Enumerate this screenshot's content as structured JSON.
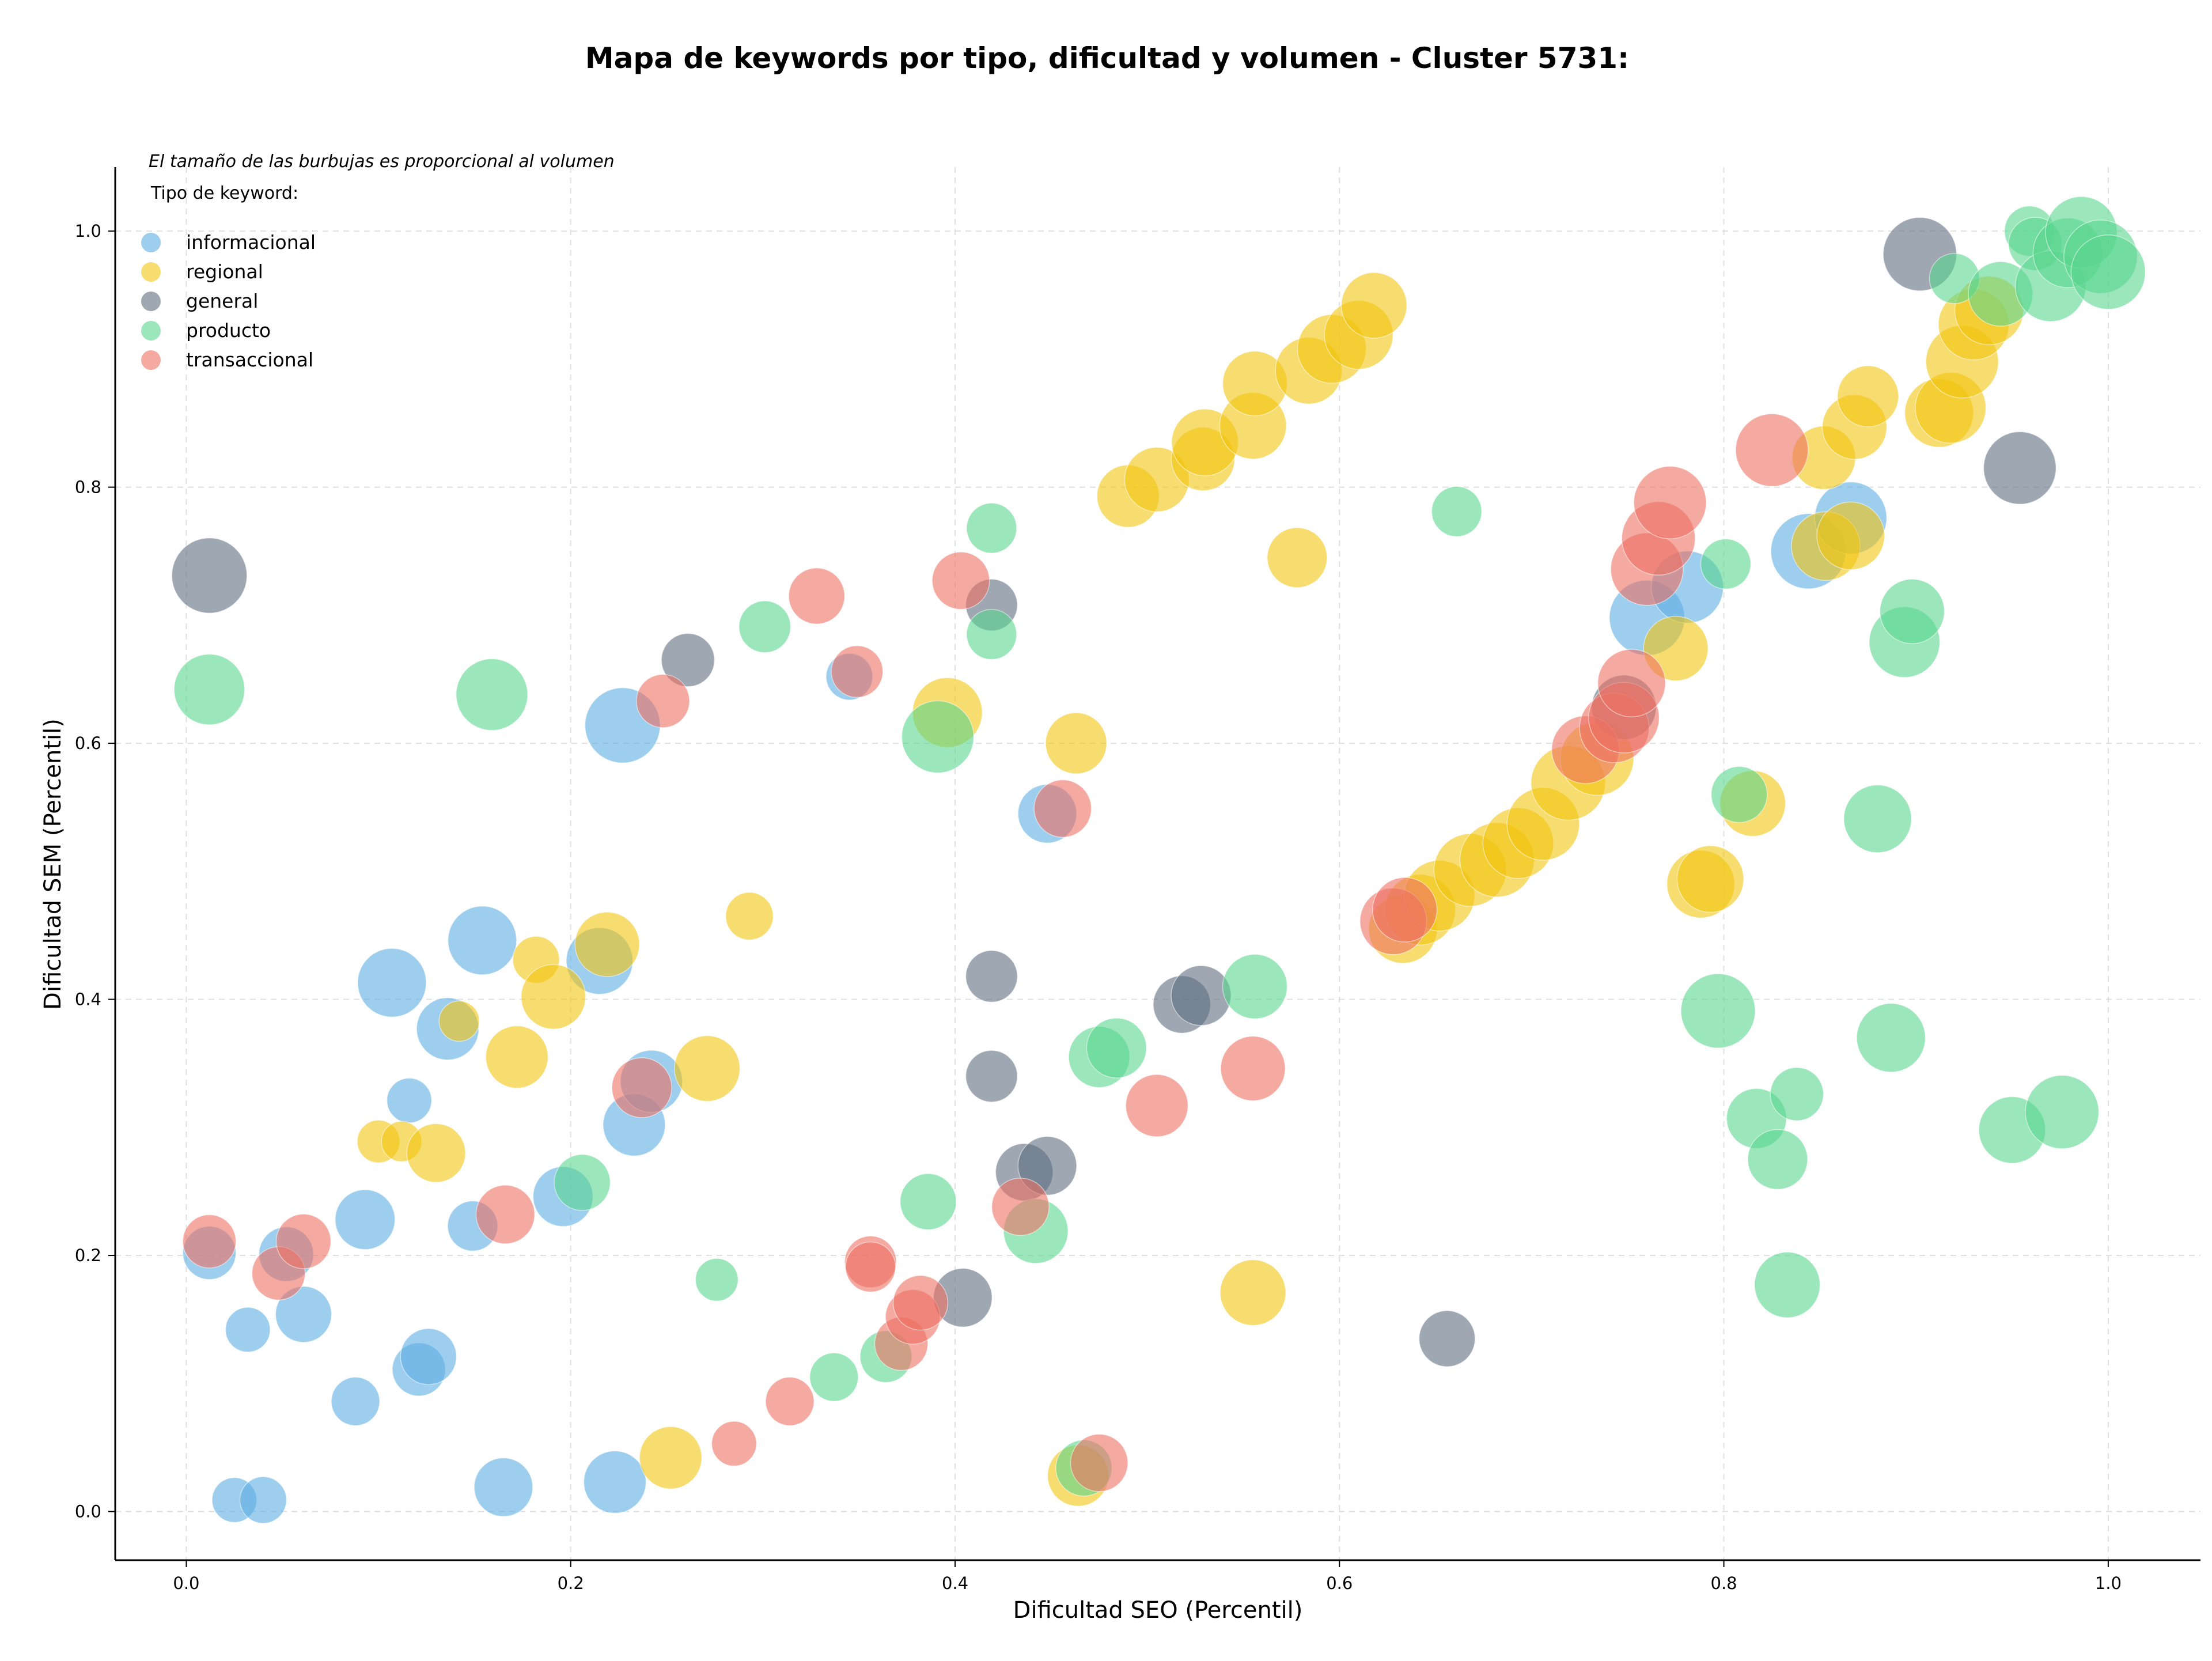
{
  "chart_data": {
    "type": "scatter",
    "title": "Mapa de keywords por tipo, dificultad y volumen - Cluster 5731:",
    "xlabel": "Dificultad SEO (Percentil)",
    "ylabel": "Dificultad SEM (Percentil)",
    "xlim": [
      -0.037,
      1.048
    ],
    "ylim": [
      -0.038,
      1.05
    ],
    "xticks": [
      "0.0",
      "0.2",
      "0.4",
      "0.6",
      "0.8",
      "1.0"
    ],
    "yticks": [
      "0.0",
      "0.2",
      "0.4",
      "0.6",
      "0.8",
      "1.0"
    ],
    "grid": true,
    "legend_placement": "top-left",
    "size_note": "El tamaño de las burbujas es proporcional al volumen",
    "legend_title": "Tipo de keyword:",
    "bubble_size": "relative volume (0-1), shown by bubble area",
    "series": [
      {
        "name": "informacional",
        "color": "#5dade2",
        "points": [
          [
            0.012,
            0.202,
            0.22
          ],
          [
            0.025,
            0.009,
            0.12
          ],
          [
            0.032,
            0.142,
            0.12
          ],
          [
            0.04,
            0.009,
            0.14
          ],
          [
            0.052,
            0.201,
            0.24
          ],
          [
            0.061,
            0.154,
            0.26
          ],
          [
            0.088,
            0.086,
            0.16
          ],
          [
            0.093,
            0.228,
            0.32
          ],
          [
            0.107,
            0.413,
            0.48
          ],
          [
            0.116,
            0.321,
            0.12
          ],
          [
            0.121,
            0.111,
            0.22
          ],
          [
            0.126,
            0.121,
            0.26
          ],
          [
            0.136,
            0.377,
            0.36
          ],
          [
            0.149,
            0.223,
            0.18
          ],
          [
            0.154,
            0.446,
            0.48
          ],
          [
            0.165,
            0.019,
            0.3
          ],
          [
            0.196,
            0.246,
            0.32
          ],
          [
            0.215,
            0.43,
            0.44
          ],
          [
            0.223,
            0.023,
            0.36
          ],
          [
            0.227,
            0.614,
            0.62
          ],
          [
            0.233,
            0.302,
            0.36
          ],
          [
            0.242,
            0.336,
            0.36
          ],
          [
            0.345,
            0.652,
            0.14
          ],
          [
            0.448,
            0.545,
            0.3
          ],
          [
            0.76,
            0.698,
            0.62
          ],
          [
            0.781,
            0.722,
            0.55
          ],
          [
            0.844,
            0.75,
            0.62
          ],
          [
            0.866,
            0.776,
            0.55
          ]
        ]
      },
      {
        "name": "regional",
        "color": "#f1c40f",
        "points": [
          [
            0.1,
            0.289,
            0.1
          ],
          [
            0.112,
            0.289,
            0.08
          ],
          [
            0.142,
            0.383,
            0.08
          ],
          [
            0.13,
            0.28,
            0.3
          ],
          [
            0.172,
            0.355,
            0.36
          ],
          [
            0.182,
            0.431,
            0.14
          ],
          [
            0.191,
            0.402,
            0.4
          ],
          [
            0.219,
            0.443,
            0.4
          ],
          [
            0.252,
            0.042,
            0.36
          ],
          [
            0.271,
            0.346,
            0.42
          ],
          [
            0.293,
            0.465,
            0.15
          ],
          [
            0.396,
            0.624,
            0.5
          ],
          [
            0.464,
            0.028,
            0.34
          ],
          [
            0.463,
            0.6,
            0.34
          ],
          [
            0.49,
            0.793,
            0.36
          ],
          [
            0.505,
            0.806,
            0.4
          ],
          [
            0.529,
            0.822,
            0.38
          ],
          [
            0.53,
            0.835,
            0.44
          ],
          [
            0.555,
            0.171,
            0.42
          ],
          [
            0.555,
            0.848,
            0.44
          ],
          [
            0.556,
            0.881,
            0.4
          ],
          [
            0.578,
            0.745,
            0.32
          ],
          [
            0.584,
            0.891,
            0.44
          ],
          [
            0.596,
            0.908,
            0.48
          ],
          [
            0.61,
            0.919,
            0.48
          ],
          [
            0.618,
            0.942,
            0.42
          ],
          [
            0.633,
            0.455,
            0.48
          ],
          [
            0.642,
            0.47,
            0.52
          ],
          [
            0.652,
            0.481,
            0.52
          ],
          [
            0.668,
            0.501,
            0.56
          ],
          [
            0.682,
            0.509,
            0.6
          ],
          [
            0.693,
            0.522,
            0.52
          ],
          [
            0.706,
            0.537,
            0.56
          ],
          [
            0.719,
            0.569,
            0.6
          ],
          [
            0.734,
            0.588,
            0.58
          ],
          [
            0.775,
            0.674,
            0.4
          ],
          [
            0.788,
            0.49,
            0.46
          ],
          [
            0.793,
            0.494,
            0.44
          ],
          [
            0.815,
            0.553,
            0.42
          ],
          [
            0.852,
            0.823,
            0.38
          ],
          [
            0.853,
            0.754,
            0.48
          ],
          [
            0.866,
            0.762,
            0.46
          ],
          [
            0.868,
            0.847,
            0.4
          ],
          [
            0.875,
            0.871,
            0.34
          ],
          [
            0.912,
            0.858,
            0.48
          ],
          [
            0.918,
            0.862,
            0.52
          ],
          [
            0.924,
            0.898,
            0.56
          ],
          [
            0.93,
            0.927,
            0.52
          ],
          [
            0.938,
            0.938,
            0.48
          ]
        ]
      },
      {
        "name": "general",
        "color": "#5d6d7e",
        "points": [
          [
            0.012,
            0.731,
            0.62
          ],
          [
            0.261,
            0.665,
            0.22
          ],
          [
            0.404,
            0.167,
            0.3
          ],
          [
            0.419,
            0.418,
            0.2
          ],
          [
            0.419,
            0.34,
            0.2
          ],
          [
            0.419,
            0.708,
            0.2
          ],
          [
            0.436,
            0.265,
            0.28
          ],
          [
            0.448,
            0.27,
            0.3
          ],
          [
            0.518,
            0.396,
            0.28
          ],
          [
            0.528,
            0.403,
            0.32
          ],
          [
            0.656,
            0.135,
            0.26
          ],
          [
            0.748,
            0.628,
            0.4
          ],
          [
            0.902,
            0.982,
            0.58
          ],
          [
            0.954,
            0.815,
            0.56
          ]
        ]
      },
      {
        "name": "producto",
        "color": "#58d68d",
        "points": [
          [
            0.012,
            0.642,
            0.52
          ],
          [
            0.159,
            0.638,
            0.54
          ],
          [
            0.206,
            0.257,
            0.26
          ],
          [
            0.276,
            0.181,
            0.1
          ],
          [
            0.301,
            0.691,
            0.2
          ],
          [
            0.337,
            0.105,
            0.16
          ],
          [
            0.364,
            0.121,
            0.2
          ],
          [
            0.386,
            0.242,
            0.26
          ],
          [
            0.391,
            0.605,
            0.55
          ],
          [
            0.419,
            0.768,
            0.18
          ],
          [
            0.419,
            0.685,
            0.18
          ],
          [
            0.442,
            0.219,
            0.4
          ],
          [
            0.467,
            0.034,
            0.26
          ],
          [
            0.475,
            0.355,
            0.34
          ],
          [
            0.484,
            0.362,
            0.32
          ],
          [
            0.556,
            0.41,
            0.4
          ],
          [
            0.661,
            0.781,
            0.18
          ],
          [
            0.797,
            0.391,
            0.6
          ],
          [
            0.801,
            0.74,
            0.18
          ],
          [
            0.808,
            0.56,
            0.26
          ],
          [
            0.817,
            0.307,
            0.32
          ],
          [
            0.828,
            0.275,
            0.32
          ],
          [
            0.833,
            0.177,
            0.42
          ],
          [
            0.838,
            0.326,
            0.22
          ],
          [
            0.88,
            0.541,
            0.46
          ],
          [
            0.887,
            0.37,
            0.48
          ],
          [
            0.894,
            0.679,
            0.52
          ],
          [
            0.898,
            0.703,
            0.4
          ],
          [
            0.92,
            0.963,
            0.18
          ],
          [
            0.944,
            0.951,
            0.4
          ],
          [
            0.95,
            0.298,
            0.44
          ],
          [
            0.959,
            1.0,
            0.18
          ],
          [
            0.962,
            0.99,
            0.22
          ],
          [
            0.97,
            0.957,
            0.52
          ],
          [
            0.976,
            0.312,
            0.58
          ],
          [
            0.979,
            0.983,
            0.5
          ],
          [
            0.986,
            0.999,
            0.54
          ],
          [
            0.996,
            0.98,
            0.58
          ],
          [
            1.0,
            0.968,
            0.6
          ]
        ]
      },
      {
        "name": "transaccional",
        "color": "#ec7063",
        "points": [
          [
            0.012,
            0.211,
            0.22
          ],
          [
            0.048,
            0.186,
            0.22
          ],
          [
            0.061,
            0.211,
            0.24
          ],
          [
            0.166,
            0.232,
            0.3
          ],
          [
            0.237,
            0.331,
            0.32
          ],
          [
            0.248,
            0.633,
            0.22
          ],
          [
            0.285,
            0.053,
            0.12
          ],
          [
            0.314,
            0.086,
            0.16
          ],
          [
            0.328,
            0.715,
            0.26
          ],
          [
            0.349,
            0.656,
            0.2
          ],
          [
            0.356,
            0.195,
            0.2
          ],
          [
            0.356,
            0.191,
            0.18
          ],
          [
            0.372,
            0.131,
            0.22
          ],
          [
            0.378,
            0.152,
            0.24
          ],
          [
            0.382,
            0.163,
            0.24
          ],
          [
            0.403,
            0.727,
            0.28
          ],
          [
            0.434,
            0.238,
            0.28
          ],
          [
            0.456,
            0.549,
            0.28
          ],
          [
            0.475,
            0.038,
            0.28
          ],
          [
            0.505,
            0.317,
            0.36
          ],
          [
            0.555,
            0.346,
            0.4
          ],
          [
            0.628,
            0.461,
            0.44
          ],
          [
            0.634,
            0.47,
            0.4
          ],
          [
            0.728,
            0.595,
            0.46
          ],
          [
            0.743,
            0.612,
            0.5
          ],
          [
            0.748,
            0.62,
            0.52
          ],
          [
            0.752,
            0.647,
            0.46
          ],
          [
            0.76,
            0.736,
            0.56
          ],
          [
            0.766,
            0.76,
            0.58
          ],
          [
            0.772,
            0.788,
            0.56
          ],
          [
            0.825,
            0.829,
            0.56
          ]
        ]
      }
    ]
  }
}
